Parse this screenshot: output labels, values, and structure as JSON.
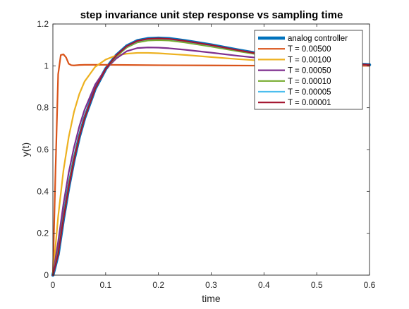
{
  "chart_data": {
    "type": "line",
    "title": "step invariance unit step response vs sampling time",
    "xlabel": "time",
    "ylabel": "y(t)",
    "xlim": [
      0,
      0.6
    ],
    "ylim": [
      0,
      1.2
    ],
    "xticks": [
      "0",
      "0.1",
      "0.2",
      "0.3",
      "0.4",
      "0.5",
      "0.6"
    ],
    "yticks": [
      "0",
      "0.2",
      "0.4",
      "0.6",
      "0.8",
      "1",
      "1.2"
    ],
    "grid": false,
    "legend_position": "top-right",
    "series": [
      {
        "name": "analog controller",
        "color": "#0072BD",
        "x": [
          0,
          0.01,
          0.02,
          0.03,
          0.04,
          0.05,
          0.06,
          0.08,
          0.1,
          0.12,
          0.14,
          0.16,
          0.18,
          0.2,
          0.22,
          0.25,
          0.3,
          0.35,
          0.4,
          0.45,
          0.5,
          0.55,
          0.6
        ],
        "y": [
          0,
          0.1,
          0.27,
          0.42,
          0.55,
          0.66,
          0.75,
          0.89,
          0.985,
          1.05,
          1.095,
          1.12,
          1.13,
          1.132,
          1.13,
          1.12,
          1.1,
          1.076,
          1.054,
          1.036,
          1.022,
          1.012,
          1.005
        ]
      },
      {
        "name": "T = 0.00500",
        "color": "#D95319",
        "x": [
          0,
          0.005,
          0.01,
          0.015,
          0.02,
          0.025,
          0.03,
          0.035,
          0.04,
          0.05,
          0.06,
          0.1,
          0.2,
          0.3,
          0.4,
          0.5,
          0.6
        ],
        "y": [
          0,
          0.5,
          0.96,
          1.052,
          1.055,
          1.04,
          1.01,
          1.003,
          1.002,
          1.004,
          1.005,
          1.005,
          1.003,
          1.002,
          1.001,
          1.0,
          1.0
        ]
      },
      {
        "name": "T = 0.00100",
        "color": "#EDB120",
        "x": [
          0,
          0.01,
          0.02,
          0.03,
          0.04,
          0.05,
          0.06,
          0.08,
          0.1,
          0.12,
          0.14,
          0.16,
          0.18,
          0.2,
          0.25,
          0.3,
          0.35,
          0.4,
          0.45,
          0.5,
          0.55,
          0.6
        ],
        "y": [
          0,
          0.28,
          0.5,
          0.66,
          0.78,
          0.865,
          0.925,
          0.995,
          1.03,
          1.05,
          1.058,
          1.062,
          1.062,
          1.06,
          1.052,
          1.042,
          1.032,
          1.024,
          1.017,
          1.011,
          1.007,
          1.004
        ]
      },
      {
        "name": "T = 0.00050",
        "color": "#7E2F8E",
        "x": [
          0,
          0.01,
          0.02,
          0.03,
          0.04,
          0.05,
          0.06,
          0.08,
          0.1,
          0.12,
          0.14,
          0.16,
          0.18,
          0.2,
          0.22,
          0.25,
          0.3,
          0.35,
          0.4,
          0.45,
          0.5,
          0.55,
          0.6
        ],
        "y": [
          0,
          0.16,
          0.34,
          0.49,
          0.61,
          0.71,
          0.79,
          0.91,
          0.985,
          1.035,
          1.07,
          1.085,
          1.088,
          1.087,
          1.084,
          1.077,
          1.063,
          1.048,
          1.035,
          1.024,
          1.015,
          1.009,
          1.005
        ]
      },
      {
        "name": "T = 0.00010",
        "color": "#77AC30",
        "x": [
          0,
          0.01,
          0.02,
          0.03,
          0.04,
          0.05,
          0.06,
          0.08,
          0.1,
          0.12,
          0.14,
          0.16,
          0.18,
          0.2,
          0.22,
          0.25,
          0.3,
          0.35,
          0.4,
          0.45,
          0.5,
          0.55,
          0.6
        ],
        "y": [
          0,
          0.11,
          0.28,
          0.43,
          0.56,
          0.665,
          0.755,
          0.89,
          0.985,
          1.045,
          1.088,
          1.112,
          1.121,
          1.123,
          1.121,
          1.112,
          1.092,
          1.07,
          1.05,
          1.033,
          1.02,
          1.011,
          1.005
        ]
      },
      {
        "name": "T = 0.00005",
        "color": "#4DBEEE",
        "x": [
          0,
          0.01,
          0.02,
          0.03,
          0.04,
          0.05,
          0.06,
          0.08,
          0.1,
          0.12,
          0.14,
          0.16,
          0.18,
          0.2,
          0.22,
          0.25,
          0.3,
          0.35,
          0.4,
          0.45,
          0.5,
          0.55,
          0.6
        ],
        "y": [
          0,
          0.1,
          0.27,
          0.42,
          0.55,
          0.66,
          0.75,
          0.89,
          0.985,
          1.05,
          1.093,
          1.118,
          1.128,
          1.13,
          1.128,
          1.118,
          1.098,
          1.075,
          1.053,
          1.035,
          1.021,
          1.011,
          1.005
        ]
      },
      {
        "name": "T = 0.00001",
        "color": "#A2142F",
        "x": [
          0,
          0.01,
          0.02,
          0.03,
          0.04,
          0.05,
          0.06,
          0.08,
          0.1,
          0.12,
          0.14,
          0.16,
          0.18,
          0.2,
          0.22,
          0.25,
          0.3,
          0.35,
          0.4,
          0.45,
          0.5,
          0.55,
          0.6
        ],
        "y": [
          0,
          0.1,
          0.27,
          0.42,
          0.55,
          0.66,
          0.75,
          0.89,
          0.985,
          1.05,
          1.094,
          1.119,
          1.129,
          1.131,
          1.129,
          1.119,
          1.099,
          1.075,
          1.053,
          1.035,
          1.021,
          1.011,
          1.005
        ]
      }
    ]
  }
}
